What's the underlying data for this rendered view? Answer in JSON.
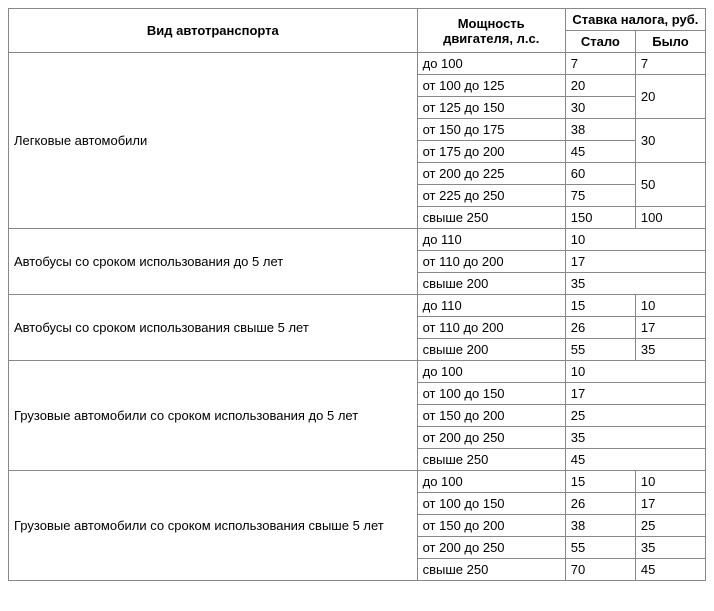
{
  "headers": {
    "vehicle": "Вид автотранспорта",
    "power": "Мощность двигателя, л.с.",
    "rate": "Ставка налога, руб.",
    "became": "Стало",
    "was": "Было"
  },
  "groups": [
    {
      "name": "Легковые автомобили",
      "rows": [
        {
          "power": "до 100",
          "became": "7",
          "was": "7",
          "was_span": 1
        },
        {
          "power": "от 100 до 125",
          "became": "20",
          "was": "20",
          "was_span": 2
        },
        {
          "power": "от 125 до 150",
          "became": "30"
        },
        {
          "power": "от 150 до 175",
          "became": "38",
          "was": "30",
          "was_span": 2
        },
        {
          "power": "от 175 до 200",
          "became": "45"
        },
        {
          "power": "от 200 до 225",
          "became": "60",
          "was": "50",
          "was_span": 2
        },
        {
          "power": "от 225 до 250",
          "became": "75"
        },
        {
          "power": "свыше 250",
          "became": "150",
          "was": "100",
          "was_span": 1
        }
      ]
    },
    {
      "name": "Автобусы со сроком использования до 5 лет",
      "rows": [
        {
          "power": "до 110",
          "became": "10",
          "merged": true
        },
        {
          "power": "от 110 до 200",
          "became": "17",
          "merged": true
        },
        {
          "power": "свыше 200",
          "became": "35",
          "merged": true
        }
      ]
    },
    {
      "name": "Автобусы со сроком использования свыше 5 лет",
      "rows": [
        {
          "power": "до 110",
          "became": "15",
          "was": "10",
          "was_span": 1
        },
        {
          "power": "от 110 до 200",
          "became": "26",
          "was": "17",
          "was_span": 1
        },
        {
          "power": "свыше 200",
          "became": "55",
          "was": "35",
          "was_span": 1
        }
      ]
    },
    {
      "name": "Грузовые автомобили со сроком использования до 5 лет",
      "rows": [
        {
          "power": "до 100",
          "became": "10",
          "merged": true
        },
        {
          "power": "от 100 до 150",
          "became": "17",
          "merged": true
        },
        {
          "power": "от 150 до 200",
          "became": "25",
          "merged": true
        },
        {
          "power": "от 200 до 250",
          "became": "35",
          "merged": true
        },
        {
          "power": "свыше 250",
          "became": "45",
          "merged": true
        }
      ]
    },
    {
      "name": "Грузовые автомобили со сроком использования свыше 5 лет",
      "rows": [
        {
          "power": "до 100",
          "became": "15",
          "was": "10",
          "was_span": 1
        },
        {
          "power": "от 100 до 150",
          "became": "26",
          "was": "17",
          "was_span": 1
        },
        {
          "power": "от 150 до 200",
          "became": "38",
          "was": "25",
          "was_span": 1
        },
        {
          "power": "от 200 до 250",
          "became": "55",
          "was": "35",
          "was_span": 1
        },
        {
          "power": "свыше 250",
          "became": "70",
          "was": "45",
          "was_span": 1
        }
      ]
    }
  ]
}
